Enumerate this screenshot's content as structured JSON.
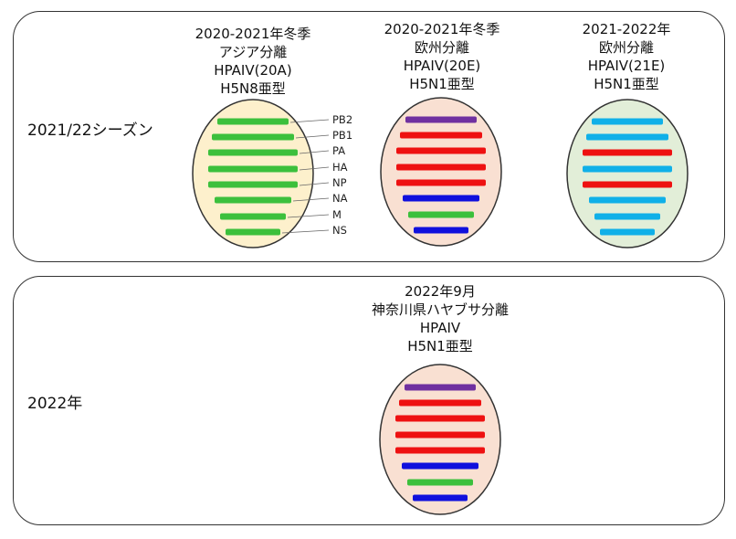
{
  "rows": [
    {
      "label": "2021/22シーズン"
    },
    {
      "label": "2022年"
    }
  ],
  "strains": [
    {
      "title_lines": [
        "2020-2021年冬季",
        "アジア分離",
        "HPAIV(20A)",
        "H5N8亜型"
      ],
      "fill": "#fdf0cc",
      "segments": [
        "green",
        "green",
        "green",
        "green",
        "green",
        "green",
        "green",
        "green"
      ]
    },
    {
      "title_lines": [
        "2020-2021年冬季",
        "欧州分離",
        "HPAIV(20E)",
        "H5N1亜型"
      ],
      "fill": "#f9e0d2",
      "segments": [
        "purple",
        "red",
        "red",
        "red",
        "red",
        "blue",
        "green",
        "blue"
      ]
    },
    {
      "title_lines": [
        "2021-2022年",
        "欧州分離",
        "HPAIV(21E)",
        "H5N1亜型"
      ],
      "fill": "#e2eed8",
      "segments": [
        "cyan",
        "cyan",
        "red",
        "cyan",
        "red",
        "cyan",
        "cyan",
        "cyan"
      ]
    },
    {
      "title_lines": [
        "2022年9月",
        "神奈川県ハヤブサ分離",
        "HPAIV",
        "H5N1亜型"
      ],
      "fill": "#f9e0d2",
      "segments": [
        "purple",
        "red",
        "red",
        "red",
        "red",
        "blue",
        "green",
        "blue"
      ]
    }
  ],
  "segment_labels": [
    "PB2",
    "PB1",
    "PA",
    "HA",
    "NP",
    "NA",
    "M",
    "NS"
  ],
  "colors": {
    "green": "#3cc03c",
    "red": "#ee1111",
    "blue": "#1010dd",
    "purple": "#7030a0",
    "cyan": "#10b0e8",
    "outline": "#333333"
  }
}
